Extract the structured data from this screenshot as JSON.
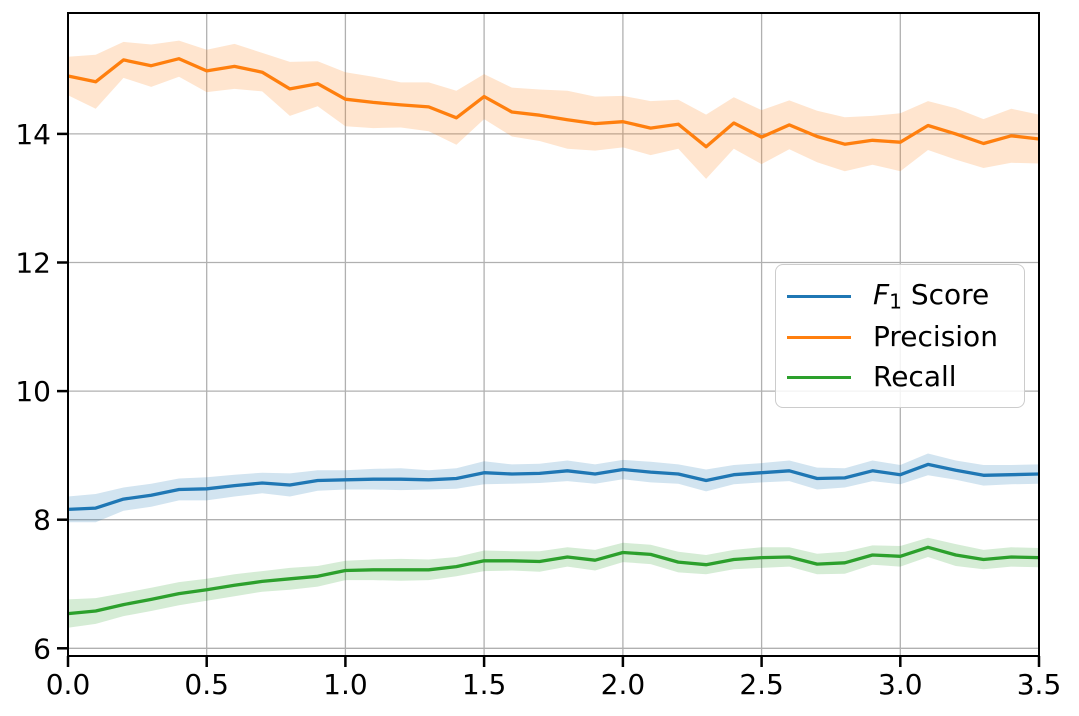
{
  "figure": {
    "background": "#ffffff"
  },
  "chart_data": {
    "type": "line",
    "title": "",
    "xlabel": "",
    "ylabel": "",
    "xlim": [
      0.0,
      3.5
    ],
    "ylim": [
      5.88,
      15.88
    ],
    "grid": {
      "show": true,
      "color": "#b0b0b0",
      "linewidth": 1.3
    },
    "spine_color": "#000000",
    "tick_label_color": "#000000",
    "legend_position": "center right",
    "band_alpha": 0.2,
    "line_width": 3.3,
    "xticks": {
      "values": [
        0.0,
        0.5,
        1.0,
        1.5,
        2.0,
        2.5,
        3.0,
        3.5
      ],
      "labels": [
        "0.0",
        "0.5",
        "1.0",
        "1.5",
        "2.0",
        "2.5",
        "3.0",
        "3.5"
      ]
    },
    "yticks": {
      "values": [
        6,
        8,
        10,
        12,
        14
      ],
      "labels": [
        "6",
        "8",
        "10",
        "12",
        "14"
      ]
    },
    "x": [
      0.0,
      0.1,
      0.2,
      0.3,
      0.4,
      0.5,
      0.6,
      0.7,
      0.8,
      0.9,
      1.0,
      1.1,
      1.2,
      1.3,
      1.4,
      1.5,
      1.6,
      1.7,
      1.8,
      1.9,
      2.0,
      2.1,
      2.2,
      2.3,
      2.4,
      2.5,
      2.6,
      2.7,
      2.8,
      2.9,
      3.0,
      3.1,
      3.2,
      3.3,
      3.4,
      3.5
    ],
    "series": [
      {
        "name": "F1 Score",
        "legend_parts": [
          {
            "text": "F",
            "style": "italic"
          },
          {
            "text": "1",
            "style": "subscript"
          },
          {
            "text": " Score",
            "style": "normal"
          }
        ],
        "color": "#1f77b4",
        "values": [
          8.16,
          8.18,
          8.32,
          8.38,
          8.47,
          8.48,
          8.53,
          8.57,
          8.54,
          8.61,
          8.62,
          8.63,
          8.63,
          8.62,
          8.64,
          8.73,
          8.71,
          8.72,
          8.76,
          8.71,
          8.78,
          8.74,
          8.71,
          8.61,
          8.7,
          8.73,
          8.76,
          8.64,
          8.65,
          8.76,
          8.7,
          8.86,
          8.77,
          8.69,
          8.7,
          8.71
        ],
        "band_halfwidth": [
          0.2,
          0.22,
          0.18,
          0.18,
          0.17,
          0.18,
          0.17,
          0.16,
          0.18,
          0.16,
          0.15,
          0.16,
          0.17,
          0.15,
          0.16,
          0.18,
          0.15,
          0.15,
          0.16,
          0.15,
          0.15,
          0.16,
          0.15,
          0.17,
          0.15,
          0.15,
          0.16,
          0.17,
          0.15,
          0.16,
          0.15,
          0.17,
          0.15,
          0.16,
          0.15,
          0.15
        ]
      },
      {
        "name": "Precision",
        "legend_parts": [
          {
            "text": "Precision",
            "style": "normal"
          }
        ],
        "color": "#ff7f0e",
        "values": [
          14.9,
          14.81,
          15.15,
          15.06,
          15.17,
          14.98,
          15.05,
          14.96,
          14.7,
          14.78,
          14.54,
          14.49,
          14.45,
          14.42,
          14.25,
          14.58,
          14.34,
          14.29,
          14.22,
          14.16,
          14.19,
          14.09,
          14.15,
          13.8,
          14.17,
          13.95,
          14.14,
          13.96,
          13.84,
          13.9,
          13.87,
          14.13,
          14.0,
          13.85,
          13.97,
          13.92
        ],
        "band_halfwidth": [
          0.3,
          0.42,
          0.28,
          0.33,
          0.28,
          0.33,
          0.35,
          0.3,
          0.42,
          0.35,
          0.42,
          0.4,
          0.35,
          0.38,
          0.42,
          0.35,
          0.38,
          0.4,
          0.45,
          0.42,
          0.4,
          0.42,
          0.38,
          0.5,
          0.4,
          0.42,
          0.38,
          0.4,
          0.42,
          0.38,
          0.45,
          0.38,
          0.4,
          0.38,
          0.42,
          0.38
        ]
      },
      {
        "name": "Recall",
        "legend_parts": [
          {
            "text": "Recall",
            "style": "normal"
          }
        ],
        "color": "#2ca02c",
        "values": [
          6.54,
          6.58,
          6.68,
          6.76,
          6.85,
          6.91,
          6.98,
          7.04,
          7.08,
          7.12,
          7.21,
          7.22,
          7.22,
          7.22,
          7.27,
          7.36,
          7.36,
          7.35,
          7.42,
          7.37,
          7.49,
          7.46,
          7.34,
          7.3,
          7.38,
          7.41,
          7.42,
          7.31,
          7.33,
          7.45,
          7.43,
          7.57,
          7.45,
          7.38,
          7.42,
          7.41
        ],
        "band_halfwidth": [
          0.22,
          0.2,
          0.18,
          0.18,
          0.18,
          0.17,
          0.17,
          0.16,
          0.17,
          0.16,
          0.15,
          0.16,
          0.17,
          0.16,
          0.15,
          0.16,
          0.15,
          0.16,
          0.15,
          0.16,
          0.15,
          0.15,
          0.16,
          0.15,
          0.15,
          0.16,
          0.15,
          0.16,
          0.17,
          0.15,
          0.16,
          0.15,
          0.17,
          0.15,
          0.15,
          0.15
        ]
      }
    ]
  }
}
